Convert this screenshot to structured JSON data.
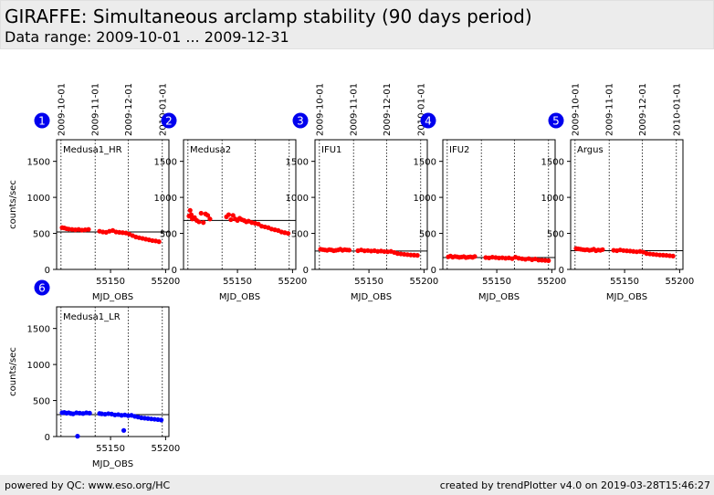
{
  "header": {
    "title": "GIRAFFE: Simultaneous arclamp stability (90 days period)",
    "subtitle": "Data range: 2009-10-01 ... 2009-12-31"
  },
  "footer": {
    "left": "powered by QC: www.eso.org/HC",
    "right": "created by trendPlotter v4.0 on 2019-03-28T15:46:27"
  },
  "colors": {
    "red": "#ff0000",
    "blue": "#0000ff",
    "badge": "#0000ee"
  },
  "chart_data": [
    {
      "type": "scatter",
      "badge": "1",
      "label": "Medusa1_HR",
      "color": "red",
      "xlabel": "MJD_OBS",
      "ylabel": "counts/sec",
      "xlim": [
        55101,
        55203
      ],
      "ylim": [
        0,
        1800
      ],
      "xticks": [
        55150,
        55200
      ],
      "yticks": [
        0,
        500,
        1000,
        1500
      ],
      "date_labels": [
        "2009-10-01",
        "2009-11-01",
        "2009-12-01",
        "2010-01-01"
      ],
      "date_lines": [
        55105,
        55136,
        55166,
        55197
      ],
      "reference": 520,
      "x": [
        55106,
        55108,
        55110,
        55112,
        55115,
        55118,
        55121,
        55124,
        55127,
        55130,
        55140,
        55143,
        55146,
        55149,
        55152,
        55155,
        55158,
        55161,
        55164,
        55167,
        55170,
        55173,
        55176,
        55179,
        55182,
        55185,
        55188,
        55191,
        55194
      ],
      "y": [
        580,
        575,
        565,
        560,
        555,
        550,
        555,
        545,
        550,
        555,
        530,
        520,
        515,
        530,
        540,
        520,
        515,
        510,
        505,
        490,
        470,
        450,
        440,
        430,
        420,
        410,
        400,
        395,
        385
      ]
    },
    {
      "type": "scatter",
      "badge": "2",
      "label": "Medusa2",
      "color": "red",
      "xlabel": "MJD_OBS",
      "ylabel": "",
      "xlim": [
        55101,
        55203
      ],
      "ylim": [
        0,
        1800
      ],
      "xticks": [
        55150,
        55200
      ],
      "yticks": [
        0,
        500,
        1000,
        1500
      ],
      "date_labels": [],
      "date_lines": [
        55105,
        55136,
        55166,
        55197
      ],
      "reference": 680,
      "x": [
        55106,
        55107,
        55108,
        55109,
        55111,
        55113,
        55115,
        55117,
        55119,
        55121,
        55123,
        55125,
        55140,
        55142,
        55144,
        55146,
        55148,
        55150,
        55152,
        55154,
        55156,
        55158,
        55160,
        55163,
        55166,
        55169,
        55172,
        55175,
        55178,
        55181,
        55184,
        55187,
        55190,
        55193,
        55196
      ],
      "y": [
        740,
        820,
        760,
        700,
        720,
        680,
        660,
        780,
        650,
        770,
        750,
        700,
        730,
        760,
        690,
        750,
        700,
        680,
        710,
        690,
        680,
        660,
        670,
        650,
        640,
        630,
        600,
        590,
        580,
        560,
        550,
        540,
        520,
        510,
        500
      ]
    },
    {
      "type": "scatter",
      "badge": "3",
      "label": "IFU1",
      "color": "red",
      "xlabel": "MJD_OBS",
      "ylabel": "",
      "xlim": [
        55101,
        55203
      ],
      "ylim": [
        0,
        1800
      ],
      "xticks": [
        55150,
        55200
      ],
      "yticks": [
        0,
        500,
        1000,
        1500
      ],
      "date_labels": [
        "2009-10-01",
        "2009-11-01",
        "2009-12-01",
        "2010-01-01"
      ],
      "date_lines": [
        55105,
        55136,
        55166,
        55197
      ],
      "reference": 255,
      "x": [
        55106,
        55108,
        55110,
        55112,
        55114,
        55116,
        55118,
        55120,
        55122,
        55124,
        55126,
        55128,
        55130,
        55132,
        55140,
        55143,
        55146,
        55149,
        55152,
        55155,
        55158,
        55161,
        55164,
        55167,
        55170,
        55173,
        55176,
        55179,
        55182,
        55185,
        55188,
        55191,
        55194
      ],
      "y": [
        280,
        275,
        270,
        265,
        275,
        270,
        260,
        265,
        270,
        280,
        265,
        275,
        270,
        268,
        260,
        270,
        258,
        262,
        255,
        260,
        250,
        255,
        248,
        245,
        250,
        235,
        220,
        215,
        210,
        205,
        200,
        198,
        195
      ]
    },
    {
      "type": "scatter",
      "badge": "4",
      "label": "IFU2",
      "color": "red",
      "xlabel": "MJD_OBS",
      "ylabel": "",
      "xlim": [
        55101,
        55203
      ],
      "ylim": [
        0,
        1800
      ],
      "xticks": [
        55150,
        55200
      ],
      "yticks": [
        0,
        500,
        1000,
        1500
      ],
      "date_labels": [],
      "date_lines": [
        55105,
        55136,
        55166,
        55197
      ],
      "reference": 165,
      "x": [
        55106,
        55108,
        55110,
        55112,
        55114,
        55116,
        55118,
        55120,
        55122,
        55124,
        55126,
        55128,
        55130,
        55140,
        55143,
        55146,
        55149,
        55152,
        55155,
        55158,
        55161,
        55164,
        55167,
        55170,
        55173,
        55176,
        55179,
        55182,
        55185,
        55188,
        55191,
        55194,
        55197
      ],
      "y": [
        175,
        185,
        170,
        180,
        175,
        168,
        172,
        178,
        165,
        170,
        175,
        168,
        180,
        165,
        160,
        170,
        165,
        158,
        162,
        155,
        160,
        150,
        170,
        155,
        148,
        140,
        150,
        135,
        145,
        130,
        128,
        125,
        122
      ]
    },
    {
      "type": "scatter",
      "badge": "5",
      "label": "Argus",
      "color": "red",
      "xlabel": "MJD_OBS",
      "ylabel": "",
      "xlim": [
        55101,
        55203
      ],
      "ylim": [
        0,
        1800
      ],
      "xticks": [
        55150,
        55200
      ],
      "yticks": [
        0,
        500,
        1000,
        1500
      ],
      "date_labels": [
        "2009-10-01",
        "2009-11-01",
        "2009-12-01",
        "2010-01-01"
      ],
      "date_lines": [
        55105,
        55136,
        55166,
        55197
      ],
      "reference": 260,
      "x": [
        55106,
        55108,
        55110,
        55112,
        55114,
        55116,
        55118,
        55120,
        55122,
        55124,
        55126,
        55128,
        55130,
        55140,
        55143,
        55146,
        55149,
        55152,
        55155,
        55158,
        55161,
        55164,
        55167,
        55170,
        55173,
        55176,
        55179,
        55182,
        55185,
        55188,
        55191,
        55194
      ],
      "y": [
        290,
        285,
        280,
        275,
        270,
        275,
        265,
        270,
        280,
        260,
        270,
        265,
        275,
        265,
        260,
        270,
        262,
        258,
        255,
        250,
        245,
        250,
        240,
        220,
        215,
        210,
        205,
        200,
        198,
        195,
        190,
        185
      ]
    },
    {
      "type": "scatter",
      "badge": "6",
      "label": "Medusa1_LR",
      "color": "blue",
      "xlabel": "MJD_OBS",
      "ylabel": "counts/sec",
      "xlim": [
        55101,
        55203
      ],
      "ylim": [
        0,
        1800
      ],
      "xticks": [
        55150,
        55200
      ],
      "yticks": [
        0,
        500,
        1000,
        1500
      ],
      "date_labels": [],
      "date_lines": [
        55105,
        55136,
        55166,
        55197
      ],
      "reference": 305,
      "x": [
        55106,
        55108,
        55110,
        55112,
        55114,
        55116,
        55119,
        55122,
        55125,
        55128,
        55131,
        55140,
        55142,
        55145,
        55148,
        55151,
        55154,
        55157,
        55160,
        55163,
        55166,
        55169,
        55172,
        55175,
        55178,
        55181,
        55184,
        55187,
        55190,
        55193,
        55196,
        55120,
        55162
      ],
      "y": [
        330,
        335,
        325,
        330,
        320,
        315,
        330,
        325,
        320,
        330,
        325,
        320,
        315,
        310,
        318,
        312,
        300,
        305,
        295,
        300,
        290,
        295,
        280,
        270,
        260,
        255,
        250,
        245,
        240,
        235,
        230,
        5,
        85
      ]
    }
  ]
}
